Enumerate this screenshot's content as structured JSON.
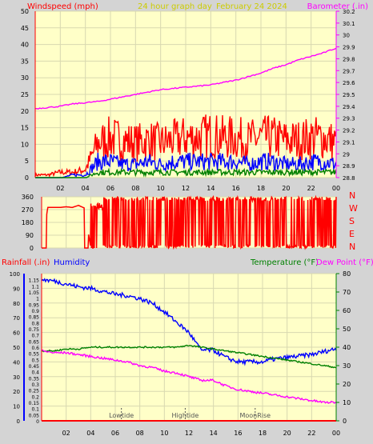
{
  "header": {
    "windspeed_label": "Windspeed (mph)",
    "graph_title": "24 hour graph day",
    "graph_date": "February 24 2024",
    "barometer_label": "Barometer (.in)"
  },
  "direction_letters": [
    "N",
    "W",
    "S",
    "E",
    "N"
  ],
  "lower_header": {
    "rainfall_label": "Rainfall (.in)",
    "humidity_label": "Humidity",
    "temperature_label": "Temperature (°F)",
    "dewpoint_label": "Dew Point (°F)"
  },
  "annotations": [
    {
      "label": "Lowtide",
      "hour": 6.5
    },
    {
      "label": "Hightide",
      "hour": 11.7
    },
    {
      "label": "MoonRise",
      "hour": 17.4
    }
  ],
  "colors": {
    "panel_bg": "#ffffc8",
    "grid": "#d8d8b0",
    "frame": "#d4d4d4",
    "wind_gust": "#ff0000",
    "wind_avg": "#0000ff",
    "wind_low": "#008000",
    "barometer": "#ff00ff",
    "direction": "#ff0000",
    "humidity": "#0000ff",
    "temperature": "#008000",
    "dewpoint": "#ff00ff",
    "rain": "#ff0000",
    "annotation": "#555555"
  },
  "chart_data": [
    {
      "type": "line",
      "x_ticks": [
        "02",
        "04",
        "06",
        "08",
        "10",
        "12",
        "14",
        "16",
        "18",
        "20",
        "22",
        "00"
      ],
      "ylabel_left": "Windspeed (mph)",
      "ylim_left": [
        0,
        50
      ],
      "yticks_left": [
        "0",
        "5",
        "10",
        "15",
        "20",
        "25",
        "30",
        "35",
        "40",
        "45",
        "50"
      ],
      "ylabel_right": "Barometer (.in)",
      "ylim_right": [
        28.8,
        30.2
      ],
      "yticks_right": [
        "28.8",
        "28.9",
        "29",
        "29.1",
        "29.2",
        "29.3",
        "29.4",
        "29.5",
        "29.6",
        "29.7",
        "29.8",
        "29.9",
        "30",
        "30.1",
        "30.2"
      ],
      "x_hours": [
        0,
        1,
        2,
        3,
        4,
        5,
        6,
        7,
        8,
        9,
        10,
        11,
        12,
        13,
        14,
        15,
        16,
        17,
        18,
        19,
        20,
        21,
        22,
        23,
        24
      ],
      "series": [
        {
          "name": "Barometer",
          "axis": "right",
          "values": [
            29.38,
            29.39,
            29.4,
            29.42,
            29.43,
            29.44,
            29.46,
            29.48,
            29.5,
            29.52,
            29.54,
            29.55,
            29.56,
            29.57,
            29.58,
            29.6,
            29.62,
            29.65,
            29.68,
            29.72,
            29.75,
            29.79,
            29.82,
            29.85,
            29.89
          ]
        },
        {
          "name": "Wind Gust",
          "axis": "left",
          "values": [
            1,
            1,
            2,
            2,
            3,
            13,
            15,
            14,
            13,
            14,
            13,
            14,
            15,
            15,
            16,
            15,
            15,
            14,
            15,
            15,
            14,
            14,
            15,
            15,
            13
          ]
        },
        {
          "name": "Wind Average",
          "axis": "left",
          "values": [
            0,
            0,
            0,
            1,
            1,
            6,
            6,
            5,
            5,
            6,
            5,
            6,
            6,
            6,
            6,
            6,
            6,
            5,
            6,
            6,
            5,
            5,
            6,
            6,
            5
          ]
        },
        {
          "name": "Wind Low",
          "axis": "left",
          "values": [
            0,
            0,
            0,
            0,
            0,
            2,
            2,
            2,
            2,
            2,
            2,
            2,
            2,
            2,
            2,
            2,
            2,
            2,
            2,
            2,
            2,
            2,
            2,
            2,
            2
          ]
        }
      ]
    },
    {
      "type": "line",
      "ylim": [
        0,
        360
      ],
      "yticks": [
        "0",
        "90",
        "180",
        "270",
        "360"
      ],
      "x_hours": [
        0,
        0.5,
        1,
        1.5,
        2,
        2.5,
        3,
        3.5,
        4,
        4.5,
        5,
        5.5,
        6,
        6.5,
        7,
        7.5,
        8,
        8.5,
        9,
        9.5,
        10,
        10.5,
        11,
        11.5,
        12,
        12.5,
        13,
        13.5,
        14,
        14.5,
        15,
        15.5,
        16,
        16.5,
        17,
        17.5,
        18,
        18.5,
        19,
        19.5,
        20,
        20.5,
        21,
        21.5,
        22,
        22.5,
        23,
        23.5,
        24
      ],
      "series": [
        {
          "name": "Wind Direction",
          "values": [
            0,
            285,
            285,
            285,
            290,
            285,
            300,
            280,
            0,
            290,
            300,
            290,
            0,
            330,
            20,
            340,
            0,
            350,
            10,
            0,
            340,
            20,
            350,
            0,
            330,
            20,
            340,
            0,
            350,
            10,
            330,
            0,
            350,
            20,
            340,
            0,
            350,
            10,
            330,
            0,
            340,
            20,
            350,
            0,
            330,
            10,
            340,
            0,
            350
          ]
        }
      ]
    },
    {
      "type": "line",
      "ylabel_left": "Humidity",
      "ylim_humidity": [
        0,
        100
      ],
      "yticks_humidity": [
        "0",
        "10",
        "20",
        "30",
        "40",
        "50",
        "60",
        "70",
        "80",
        "90",
        "100"
      ],
      "ylabel_rain": "Rainfall (.in)",
      "ylim_rain": [
        0,
        1.2
      ],
      "yticks_rain": [
        "0",
        "0.05",
        "0.1",
        "0.15",
        "0.2",
        "0.25",
        "0.3",
        "0.35",
        "0.4",
        "0.45",
        "0.5",
        "0.55",
        "0.6",
        "0.65",
        "0.7",
        "0.75",
        "0.8",
        "0.85",
        "0.9",
        "0.95",
        "1",
        "1.05",
        "1.1",
        "1.15"
      ],
      "ylabel_right": "Temperature (°F) Dew Point (°F)",
      "ylim_right": [
        0,
        80
      ],
      "yticks_right": [
        "0",
        "10",
        "20",
        "30",
        "40",
        "50",
        "60",
        "70",
        "80"
      ],
      "x_hours": [
        0,
        1,
        2,
        3,
        4,
        5,
        6,
        7,
        8,
        9,
        10,
        11,
        12,
        13,
        14,
        15,
        16,
        17,
        18,
        19,
        20,
        21,
        22,
        23,
        24
      ],
      "series": [
        {
          "name": "Humidity",
          "axis": "humidity",
          "values": [
            96,
            95,
            93,
            91,
            90,
            88,
            86,
            85,
            83,
            80,
            74,
            67,
            60,
            48,
            48,
            43,
            40,
            40,
            40,
            42,
            43,
            44,
            45,
            47,
            49
          ]
        },
        {
          "name": "Temperature",
          "axis": "right",
          "values": [
            38,
            38,
            39,
            39,
            40,
            40,
            40,
            40,
            40,
            40,
            40,
            40,
            41,
            40,
            39,
            38,
            37,
            36,
            35,
            34,
            33,
            32,
            31,
            30,
            29
          ]
        },
        {
          "name": "Dew Point",
          "axis": "right",
          "values": [
            38,
            37,
            37,
            36,
            35,
            34,
            33,
            32,
            30,
            29,
            27,
            26,
            24,
            22,
            22,
            19,
            17,
            16,
            15,
            14,
            13,
            12,
            11,
            10,
            10
          ]
        },
        {
          "name": "Rainfall",
          "axis": "rain",
          "values": [
            0,
            0,
            0,
            0,
            0,
            0,
            0,
            0,
            0,
            0,
            0,
            0,
            0,
            0,
            0,
            0,
            0,
            0,
            0,
            0,
            0,
            0,
            0,
            0,
            0
          ]
        }
      ]
    }
  ]
}
